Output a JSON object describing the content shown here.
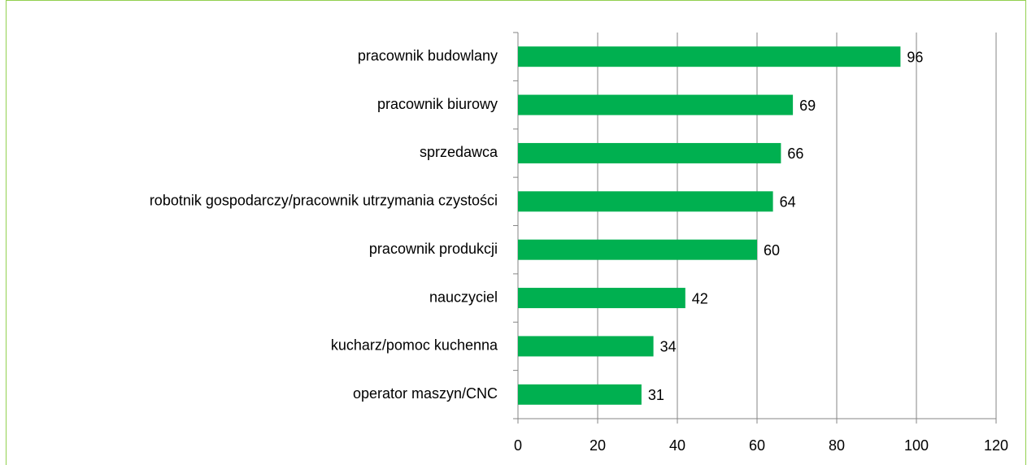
{
  "chart_data": {
    "type": "bar",
    "orientation": "horizontal",
    "categories": [
      "pracownik budowlany",
      "pracownik biurowy",
      "sprzedawca",
      "robotnik gospodarczy/pracownik utrzymania czystości",
      "pracownik produkcji",
      "nauczyciel",
      "kucharz/pomoc kuchenna",
      "operator maszyn/CNC"
    ],
    "values": [
      96,
      69,
      66,
      64,
      60,
      42,
      34,
      31
    ],
    "color": "#00b050",
    "xlim": [
      0,
      120
    ],
    "xticks": [
      0,
      20,
      40,
      60,
      80,
      100,
      120
    ],
    "grid": true
  }
}
